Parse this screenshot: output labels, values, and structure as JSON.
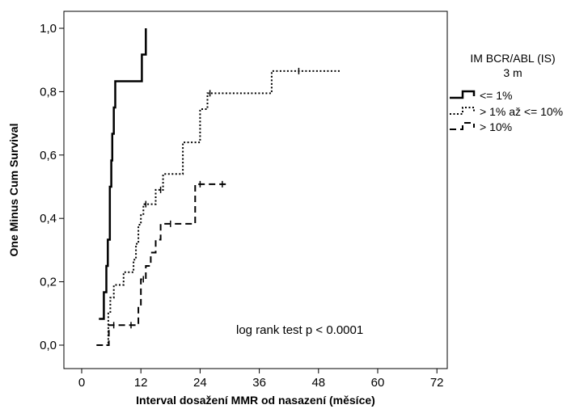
{
  "chart_data": {
    "type": "line",
    "step": true,
    "xlabel": "Interval dosažení MMR od nasazení (měsíce)",
    "ylabel": "One Minus Cum Survival",
    "xlim": [
      0,
      72
    ],
    "ylim": [
      0,
      1
    ],
    "x_ticks": [
      0,
      12,
      24,
      36,
      48,
      60,
      72
    ],
    "y_ticks": [
      0.0,
      0.2,
      0.4,
      0.6,
      0.8,
      1.0
    ],
    "y_tick_labels": [
      "0,0",
      "0,2",
      "0,4",
      "0,6",
      "0,8",
      "1,0"
    ],
    "legend": {
      "title": [
        "IM BCR/ABL (IS)",
        "3 m"
      ],
      "position": "right"
    },
    "annotation": "log rank test  p < 0.0001",
    "grid": false,
    "series": [
      {
        "name": "<= 1%",
        "line_style": "solid",
        "points": [
          [
            3.5,
            0.083
          ],
          [
            4.5,
            0.083
          ],
          [
            4.5,
            0.167
          ],
          [
            5.0,
            0.167
          ],
          [
            5.0,
            0.25
          ],
          [
            5.3,
            0.25
          ],
          [
            5.3,
            0.333
          ],
          [
            5.7,
            0.333
          ],
          [
            5.7,
            0.5
          ],
          [
            6.0,
            0.5
          ],
          [
            6.0,
            0.583
          ],
          [
            6.2,
            0.583
          ],
          [
            6.2,
            0.667
          ],
          [
            6.5,
            0.667
          ],
          [
            6.5,
            0.75
          ],
          [
            6.8,
            0.75
          ],
          [
            6.8,
            0.833
          ],
          [
            12.2,
            0.833
          ],
          [
            12.2,
            0.917
          ],
          [
            13.0,
            0.917
          ],
          [
            13.0,
            1.0
          ]
        ],
        "censored_x": []
      },
      {
        "name": "> 1% až <= 10%",
        "line_style": "dotted",
        "points": [
          [
            5.0,
            0.0
          ],
          [
            5.4,
            0.0
          ],
          [
            5.4,
            0.1
          ],
          [
            5.8,
            0.1
          ],
          [
            5.8,
            0.15
          ],
          [
            6.5,
            0.15
          ],
          [
            6.5,
            0.19
          ],
          [
            8.5,
            0.19
          ],
          [
            8.5,
            0.23
          ],
          [
            10.5,
            0.23
          ],
          [
            10.5,
            0.27
          ],
          [
            11.0,
            0.27
          ],
          [
            11.0,
            0.32
          ],
          [
            11.5,
            0.32
          ],
          [
            11.5,
            0.38
          ],
          [
            12.0,
            0.38
          ],
          [
            12.0,
            0.41
          ],
          [
            12.5,
            0.41
          ],
          [
            12.5,
            0.445
          ],
          [
            15.0,
            0.445
          ],
          [
            15.0,
            0.49
          ],
          [
            16.5,
            0.49
          ],
          [
            16.5,
            0.54
          ],
          [
            20.5,
            0.54
          ],
          [
            20.5,
            0.64
          ],
          [
            24.0,
            0.64
          ],
          [
            24.0,
            0.745
          ],
          [
            25.5,
            0.745
          ],
          [
            25.5,
            0.795
          ],
          [
            38.5,
            0.795
          ],
          [
            38.5,
            0.865
          ],
          [
            52.5,
            0.865
          ]
        ],
        "censored_x": [
          13.0,
          16.0,
          26.0,
          44.0
        ]
      },
      {
        "name": "> 10%",
        "line_style": "dashed",
        "points": [
          [
            3.0,
            0.0
          ],
          [
            5.5,
            0.0
          ],
          [
            5.5,
            0.063
          ],
          [
            11.5,
            0.063
          ],
          [
            11.5,
            0.125
          ],
          [
            12.0,
            0.125
          ],
          [
            12.0,
            0.208
          ],
          [
            13.0,
            0.208
          ],
          [
            13.0,
            0.25
          ],
          [
            14.0,
            0.25
          ],
          [
            14.0,
            0.292
          ],
          [
            15.0,
            0.292
          ],
          [
            15.0,
            0.333
          ],
          [
            16.0,
            0.333
          ],
          [
            16.0,
            0.383
          ],
          [
            23.0,
            0.383
          ],
          [
            23.0,
            0.508
          ],
          [
            29.5,
            0.508
          ]
        ],
        "censored_x": [
          6.5,
          10.0,
          12.5,
          18.0,
          24.0,
          28.5
        ]
      }
    ]
  }
}
